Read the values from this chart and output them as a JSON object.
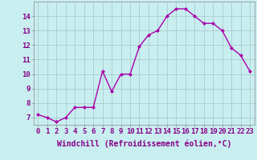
{
  "x": [
    0,
    1,
    2,
    3,
    4,
    5,
    6,
    7,
    8,
    9,
    10,
    11,
    12,
    13,
    14,
    15,
    16,
    17,
    18,
    19,
    20,
    21,
    22,
    23
  ],
  "y": [
    7.2,
    7.0,
    6.7,
    7.0,
    7.7,
    7.7,
    7.7,
    10.2,
    8.8,
    10.0,
    10.0,
    11.9,
    12.7,
    13.0,
    14.0,
    14.5,
    14.5,
    14.0,
    13.5,
    13.5,
    13.0,
    11.8,
    11.3,
    10.2
  ],
  "line_color": "#aa00aa",
  "marker": "D",
  "marker_size": 2,
  "bg_color": "#c8eef0",
  "grid_color": "#aacccc",
  "xlabel": "Windchill (Refroidissement éolien,°C)",
  "xlim": [
    -0.5,
    23.5
  ],
  "ylim": [
    6.5,
    15.0
  ],
  "yticks": [
    7,
    8,
    9,
    10,
    11,
    12,
    13,
    14
  ],
  "xticks": [
    0,
    1,
    2,
    3,
    4,
    5,
    6,
    7,
    8,
    9,
    10,
    11,
    12,
    13,
    14,
    15,
    16,
    17,
    18,
    19,
    20,
    21,
    22,
    23
  ],
  "xlabel_fontsize": 7,
  "tick_fontsize": 6.5,
  "line_width": 1.0,
  "ylabel_color": "#880088"
}
